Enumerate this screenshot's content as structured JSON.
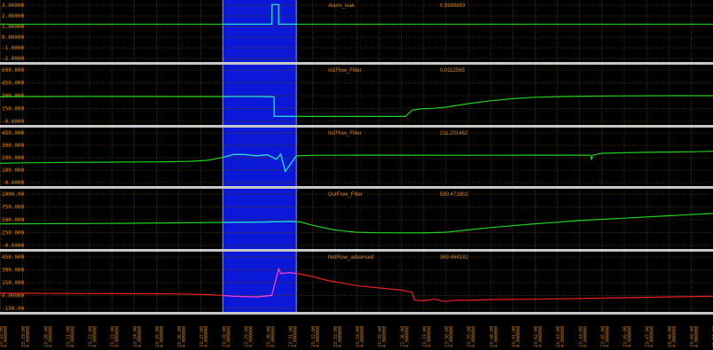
{
  "colors": {
    "background": "#000000",
    "grid": "#5a4a2a",
    "separator": "#c8c8c8",
    "selection": "#0b18d8",
    "selection_edge": "#8890ff",
    "label": "#e08a1e",
    "green_series": "#1fd21f",
    "cyan_selected": "#2ad4f0",
    "red_series": "#ee2020",
    "magenta_selected": "#ee40ee"
  },
  "x_axis": {
    "ticks": [
      [
        "23:18:00",
        "4.000000"
      ],
      [
        "23:19:00",
        "4.000000"
      ],
      [
        "23:20:00",
        "4.000000"
      ],
      [
        "23:21:00",
        "4.000000"
      ],
      [
        "23:22:00",
        "4.000000"
      ],
      [
        "23:23:00",
        "4.000000"
      ],
      [
        "23:24:00",
        "4.000000"
      ],
      [
        "23:25:00",
        "4.000000"
      ],
      [
        "23:26:00",
        "4.000000"
      ],
      [
        "23:27:00",
        "4.000000"
      ],
      [
        "23:28:00",
        "4.000000"
      ],
      [
        "23:29:00",
        "4.000000"
      ],
      [
        "23:30:00",
        "4.000000"
      ],
      [
        "23:31:00",
        "4.000000"
      ],
      [
        "23:32:00",
        "4.000000"
      ],
      [
        "23:33:00",
        "4.000000"
      ],
      [
        "23:34:00",
        "4.000000"
      ],
      [
        "23:35:00",
        "4.000000"
      ],
      [
        "23:36:00",
        "4.000000"
      ],
      [
        "23:37:00",
        "4.000000"
      ],
      [
        "23:38:00",
        "4.000000"
      ],
      [
        "23:39:00",
        "4.000000"
      ],
      [
        "23:40:00",
        "4.000000"
      ],
      [
        "23:41:00",
        "4.000000"
      ],
      [
        "23:42:00",
        "4.000000"
      ],
      [
        "23:43:00",
        "4.000000"
      ],
      [
        "23:44:00",
        "4.000000"
      ],
      [
        "23:45:00",
        "4.000000"
      ],
      [
        "23:46:00",
        "4.000000"
      ],
      [
        "23:47:00",
        "4.000000"
      ],
      [
        "23:48:00",
        "4.000000"
      ],
      [
        "23:49:00",
        "4.000000"
      ],
      [
        "23:50:00",
        "4.000000"
      ]
    ],
    "selection_range": [
      10.0,
      13.3
    ],
    "domain": [
      0,
      32
    ]
  },
  "chart_data": [
    {
      "type": "line",
      "title": "Alarm_leak",
      "readout": "0.9999693",
      "y_ticks": [
        "3.00000",
        "2.00000",
        "1.00000",
        "0.00000",
        "-1.0000",
        "-2.0000"
      ],
      "ylim": [
        -2.5,
        3.1
      ],
      "series": [
        {
          "color_key": "green_series",
          "selected_color_key": "cyan_selected",
          "x": [
            0,
            12.2,
            12.21,
            12.5,
            12.51,
            13.0,
            13.01,
            32
          ],
          "y": [
            1,
            1,
            3,
            3,
            1,
            1,
            1,
            1
          ]
        }
      ]
    },
    {
      "type": "line",
      "title": "In1Flow_Filter",
      "readout": "0.0112565",
      "y_ticks": [
        "600.000",
        "450.000",
        "300.000",
        "150.000",
        "-0.0000"
      ],
      "ylim": [
        -50,
        700
      ],
      "series": [
        {
          "color_key": "green_series",
          "selected_color_key": "cyan_selected",
          "x": [
            0,
            2,
            4,
            6,
            8,
            10,
            11,
            12,
            12.3,
            12.31,
            13,
            16,
            18.2,
            18.5,
            19,
            19.5,
            20,
            21,
            22,
            23,
            24,
            26,
            28,
            30,
            32
          ],
          "y": [
            300,
            300,
            302,
            301,
            300,
            300,
            302,
            300,
            295,
            20,
            20,
            20,
            20,
            110,
            130,
            135,
            150,
            200,
            240,
            270,
            290,
            305,
            310,
            312,
            313
          ]
        }
      ]
    },
    {
      "type": "line",
      "title": "In2Flow_Filter",
      "readout": "211.201462",
      "y_ticks": [
        "450.000",
        "300.000",
        "200.000",
        "100.000",
        "-0.0000"
      ],
      "ylim": [
        -50,
        460
      ],
      "series": [
        {
          "color_key": "green_series",
          "selected_color_key": "cyan_selected",
          "x": [
            0,
            1,
            3,
            5,
            7,
            8.5,
            9.3,
            10,
            10.5,
            11,
            11.5,
            12,
            12.4,
            12.6,
            12.8,
            13.3,
            14,
            16,
            18,
            20,
            22,
            24,
            25.5,
            26.5,
            26.55,
            26.6,
            27,
            29,
            31,
            32
          ],
          "y": [
            140,
            145,
            150,
            152,
            155,
            160,
            170,
            200,
            230,
            228,
            215,
            226,
            180,
            232,
            60,
            215,
            220,
            222,
            222,
            220,
            221,
            222,
            222,
            222,
            175,
            222,
            240,
            250,
            255,
            260
          ]
        }
      ]
    },
    {
      "type": "line",
      "title": "OutFlow_Filter",
      "readout": "580.471802",
      "y_ticks": [
        "1000.00",
        "750.000",
        "500.000",
        "250.000",
        "-0.0000"
      ],
      "ylim": [
        -80,
        1050
      ],
      "series": [
        {
          "color_key": "green_series",
          "selected_color_key": "cyan_selected",
          "x": [
            0,
            4,
            8,
            10,
            12,
            13,
            13.5,
            14,
            15,
            16,
            17,
            19,
            20,
            21,
            22,
            24,
            26,
            28,
            30,
            32
          ],
          "y": [
            380,
            385,
            400,
            410,
            420,
            430,
            420,
            350,
            250,
            200,
            190,
            185,
            200,
            250,
            300,
            380,
            450,
            500,
            550,
            600
          ]
        }
      ]
    },
    {
      "type": "line",
      "title": "NetFlow_advanced",
      "readout": "369.464192",
      "y_ticks": [
        "450.000",
        "300.000",
        "150.000",
        "0.00000",
        "-150.00"
      ],
      "ylim": [
        -200,
        500
      ],
      "series": [
        {
          "color_key": "red_series",
          "selected_color_key": "magenta_selected",
          "x": [
            0,
            4,
            8,
            9.5,
            10.5,
            11.5,
            12.2,
            12.4,
            12.5,
            12.6,
            13,
            13.3,
            13.5,
            14,
            14.5,
            15,
            16,
            17,
            18,
            18.5,
            18.6,
            19,
            19.5,
            20,
            20.5,
            21,
            22,
            24,
            26,
            28,
            30,
            32
          ],
          "y": [
            0,
            -5,
            -10,
            -20,
            -40,
            -50,
            -30,
            200,
            320,
            260,
            270,
            260,
            250,
            220,
            180,
            150,
            100,
            70,
            40,
            10,
            -90,
            -100,
            -80,
            -110,
            -90,
            -95,
            -85,
            -80,
            -70,
            -60,
            -50,
            -40
          ]
        }
      ]
    }
  ]
}
